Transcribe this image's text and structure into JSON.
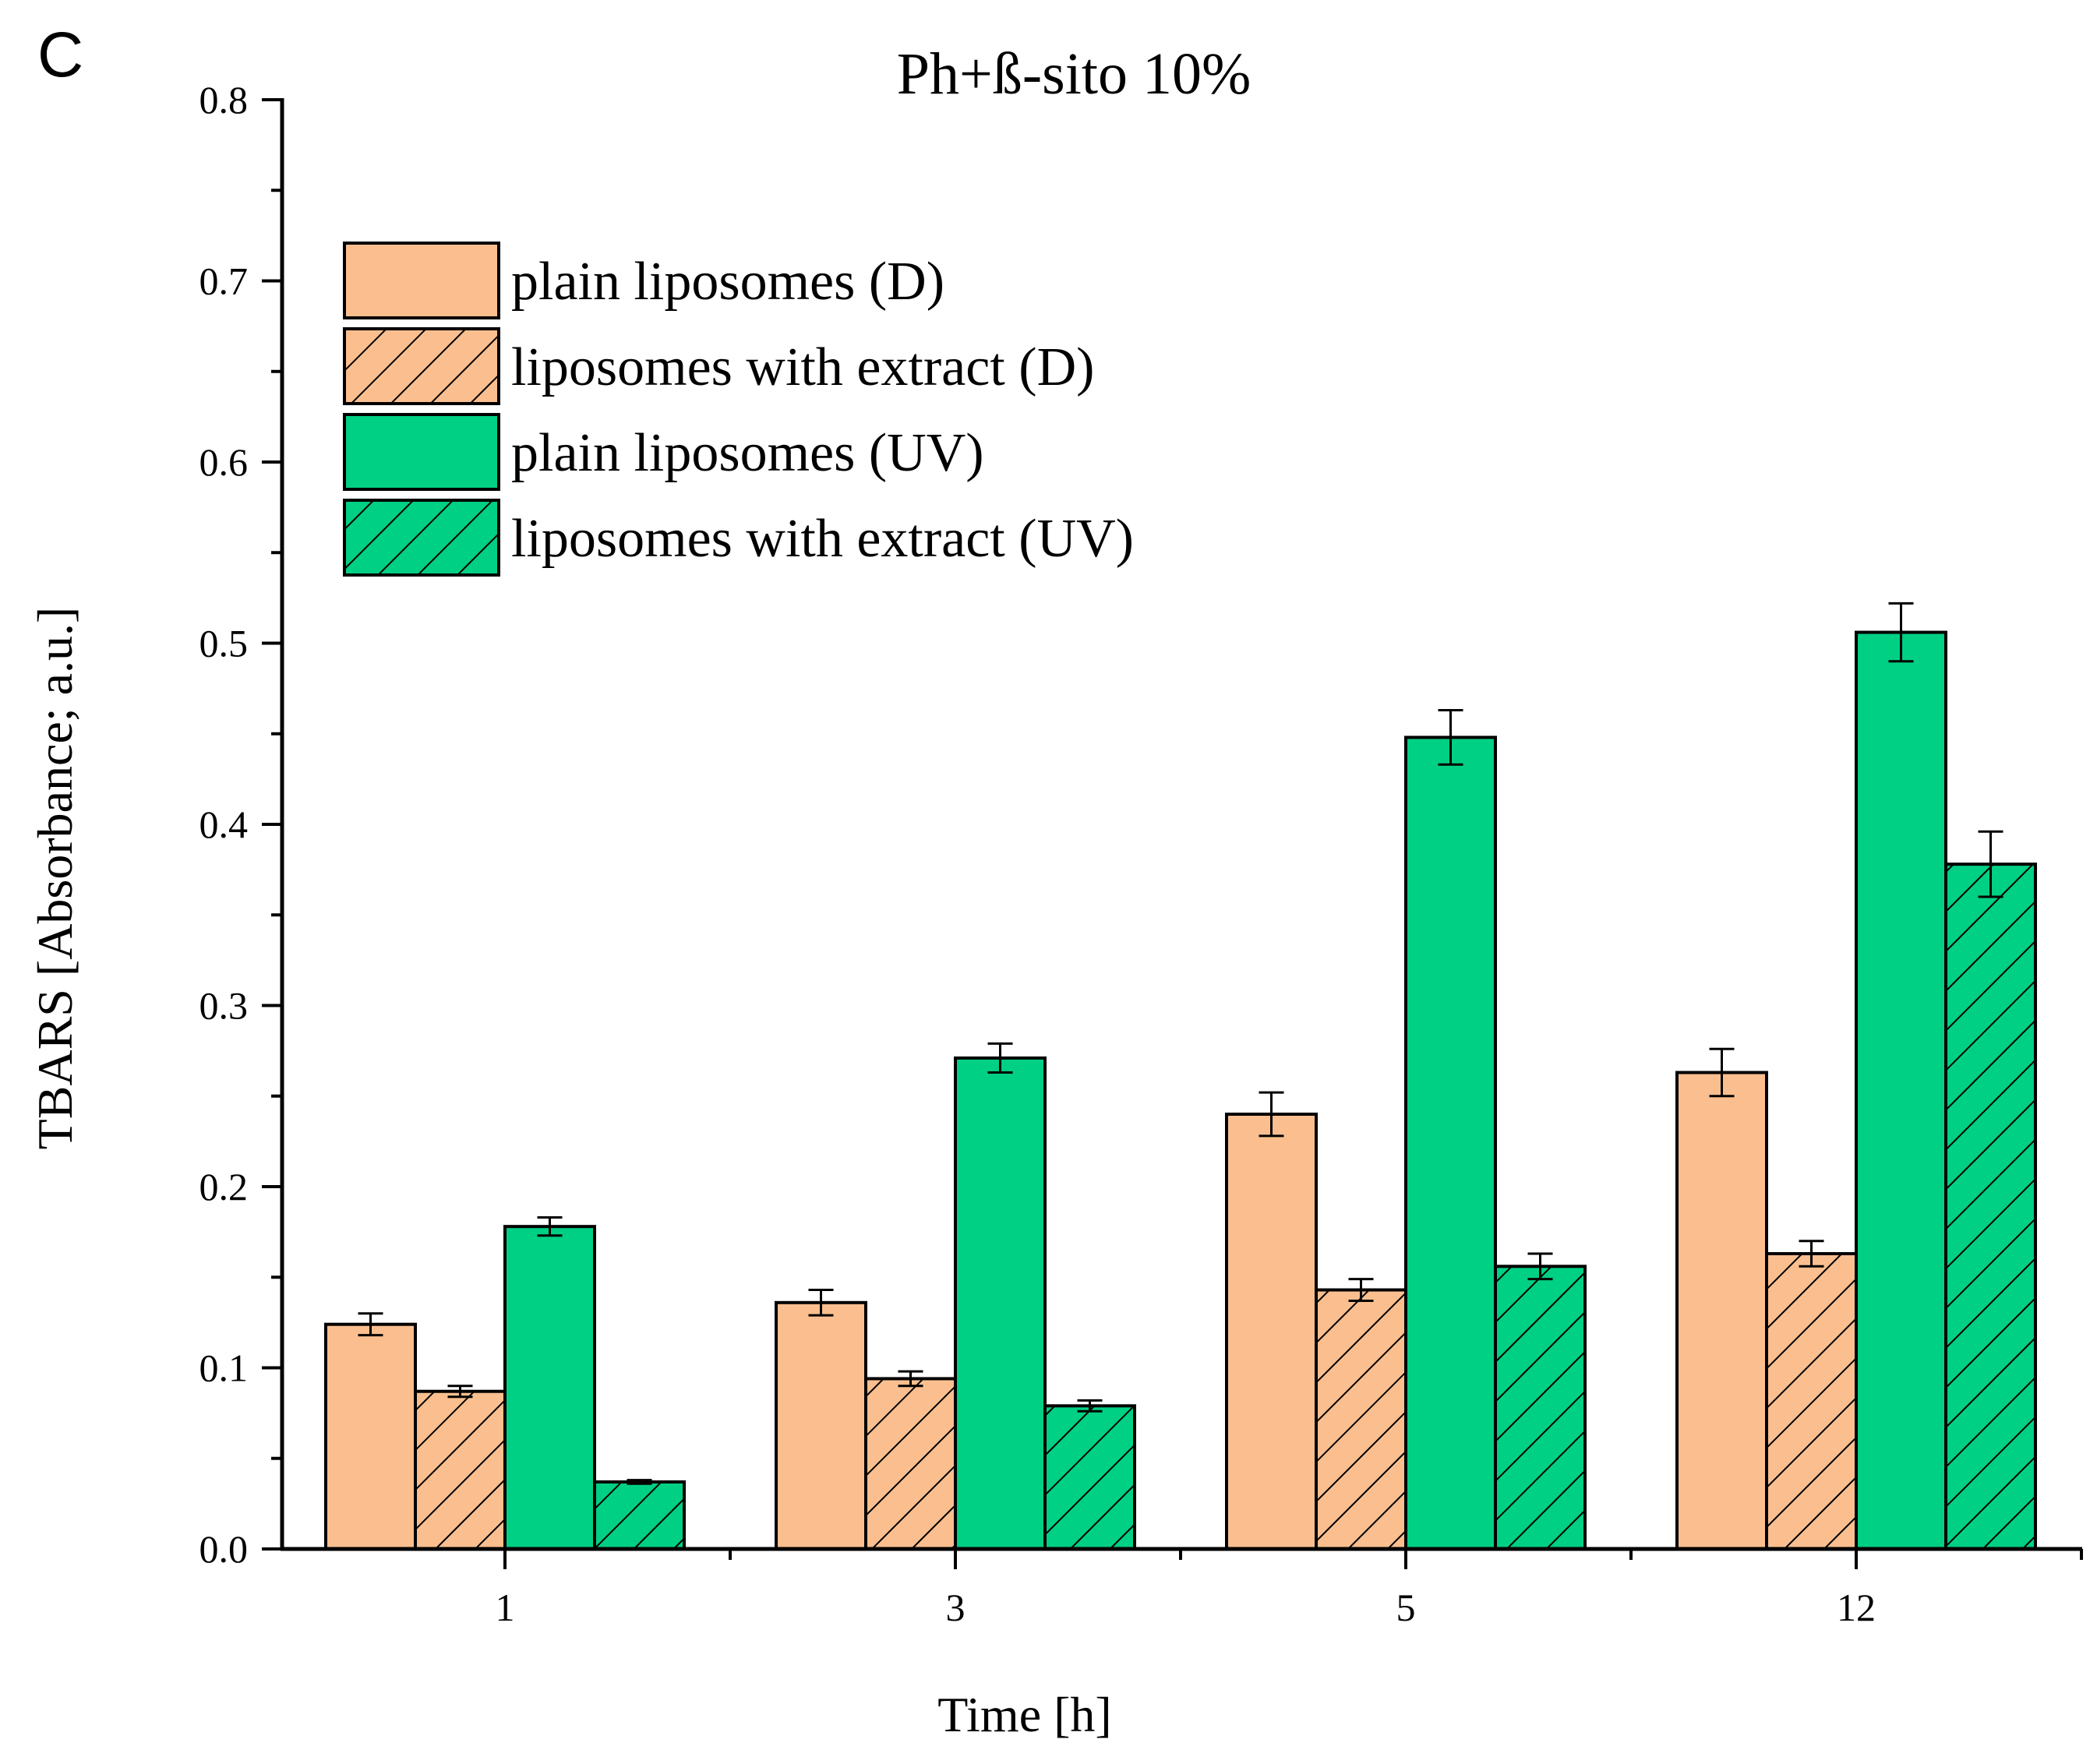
{
  "panel_letter": "C",
  "chart_data": {
    "type": "bar",
    "title": "Ph+ß-sito 10%",
    "xlabel": "Time [h]",
    "ylabel": "TBARS [Absorbance; a.u.]",
    "categories": [
      "1",
      "3",
      "5",
      "12"
    ],
    "ylim": [
      0,
      0.8
    ],
    "yticks": [
      "0.0",
      "0.1",
      "0.2",
      "0.3",
      "0.4",
      "0.5",
      "0.6",
      "0.7",
      "0.8"
    ],
    "legend_position": "top-left",
    "grid": false,
    "series": [
      {
        "name": "plain liposomes (D)",
        "color": "#FBBF8F",
        "pattern": "solid",
        "values": [
          0.124,
          0.136,
          0.24,
          0.263
        ],
        "errors": [
          0.006,
          0.007,
          0.012,
          0.013
        ]
      },
      {
        "name": "liposomes with extract (D)",
        "color": "#FBBF8F",
        "pattern": "hatched",
        "values": [
          0.087,
          0.094,
          0.143,
          0.163
        ],
        "errors": [
          0.003,
          0.004,
          0.006,
          0.007
        ]
      },
      {
        "name": "plain liposomes (UV)",
        "color": "#00D084",
        "pattern": "solid",
        "values": [
          0.178,
          0.271,
          0.448,
          0.506
        ],
        "errors": [
          0.005,
          0.008,
          0.015,
          0.016
        ]
      },
      {
        "name": "liposomes with extract (UV)",
        "color": "#00D084",
        "pattern": "hatched",
        "values": [
          0.037,
          0.079,
          0.156,
          0.378
        ],
        "errors": [
          0.001,
          0.003,
          0.007,
          0.018
        ]
      }
    ]
  }
}
